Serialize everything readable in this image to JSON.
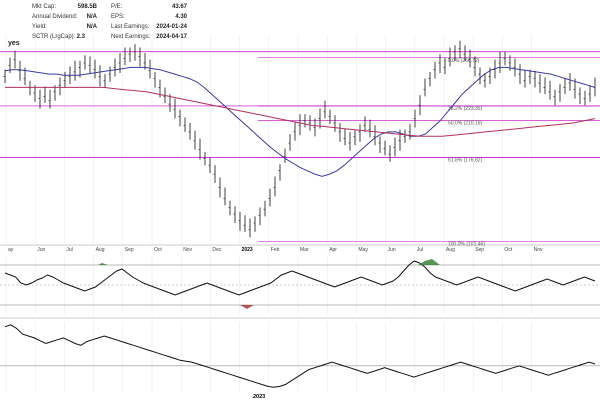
{
  "stats": {
    "left": [
      {
        "label": "Mkt Cap:",
        "value": "598.5B"
      },
      {
        "label": "Annual Dividend:",
        "value": "N/A"
      },
      {
        "label": "Yield:",
        "value": "N/A"
      },
      {
        "label": "SCTR (LrgCap):",
        "value": "2.3"
      }
    ],
    "right": [
      {
        "label": "P/E:",
        "value": "43.67"
      },
      {
        "label": "EPS:",
        "value": "4.30"
      },
      {
        "label": "Last Earnings:",
        "value": "2024-01-24"
      },
      {
        "label": "Next Earnings:",
        "value": "2024-04-17"
      }
    ],
    "flag": "yes"
  },
  "chart_data": {
    "type": "line",
    "panels": [
      "price",
      "oscillator",
      "relative-strength"
    ],
    "x_axis": {
      "months": [
        "ay",
        "Jun",
        "Jul",
        "Aug",
        "Sep",
        "Oct",
        "Nov",
        "Dec",
        "2023",
        "Feb",
        "Mar",
        "Apr",
        "May",
        "Jun",
        "Jul",
        "Aug",
        "Sep",
        "Oct",
        "Nov"
      ],
      "year_label": "2023"
    },
    "price": {
      "ohlc_close": [
        250,
        260,
        265,
        255,
        248,
        240,
        235,
        230,
        232,
        228,
        236,
        242,
        246,
        250,
        254,
        258,
        262,
        260,
        256,
        250,
        246,
        252,
        258,
        262,
        266,
        270,
        272,
        268,
        262,
        255,
        248,
        240,
        232,
        225,
        220,
        214,
        206,
        200,
        192,
        184,
        176,
        170,
        162,
        150,
        140,
        132,
        126,
        120,
        116,
        112,
        118,
        125,
        130,
        140,
        150,
        165,
        178,
        190,
        200,
        206,
        210,
        208,
        204,
        212,
        218,
        214,
        208,
        200,
        194,
        190,
        196,
        200,
        206,
        202,
        196,
        190,
        185,
        180,
        186,
        192,
        196,
        200,
        212,
        224,
        238,
        248,
        256,
        262,
        258,
        266,
        272,
        275,
        270,
        265,
        258,
        252,
        246,
        250,
        256,
        262,
        266,
        262,
        258,
        252,
        246,
        250,
        248,
        244,
        240,
        236,
        232,
        236,
        240,
        244,
        238,
        234,
        230,
        234,
        240
      ],
      "ma_short": [
        255,
        256,
        256,
        255,
        254,
        253,
        252,
        252,
        251,
        251,
        251,
        252,
        253,
        254,
        255,
        256,
        257,
        258,
        258,
        258,
        257,
        256,
        254,
        252,
        250,
        248,
        245,
        240,
        234,
        228,
        222,
        216,
        210,
        204,
        198,
        192,
        186,
        181,
        176,
        172,
        168,
        165,
        162,
        160,
        162,
        165,
        170,
        176,
        182,
        188,
        194,
        198,
        200,
        200,
        198,
        196,
        196,
        198,
        204,
        210,
        218,
        226,
        234,
        240,
        246,
        252,
        256,
        258,
        258,
        257,
        256,
        255,
        254,
        253,
        252,
        250,
        248,
        246,
        244,
        242,
        240
      ],
      "ma_long": [
        240,
        240,
        240,
        240,
        240,
        240,
        240,
        240,
        240,
        240,
        239,
        238,
        237,
        236,
        234,
        232,
        230,
        228,
        226,
        224,
        222,
        220,
        218,
        216,
        214,
        212,
        210,
        208,
        206,
        205,
        204,
        203,
        202,
        201,
        200,
        199,
        198,
        197,
        196,
        196,
        196,
        197,
        198,
        199,
        200,
        201,
        202,
        203,
        204,
        205,
        206,
        207,
        208,
        210,
        212
      ],
      "fibonacci": [
        {
          "level": "0.0%",
          "price": "266.72"
        },
        {
          "level": "38.2%",
          "price": "223.35"
        },
        {
          "level": "50.0%",
          "price": "210.19"
        },
        {
          "level": "61.8%",
          "price": "176.82"
        },
        {
          "level": "100.0%",
          "price": "101.46"
        }
      ]
    },
    "oscillator": {
      "values": [
        62,
        60,
        58,
        52,
        50,
        52,
        55,
        57,
        60,
        58,
        55,
        52,
        50,
        48,
        46,
        44,
        46,
        48,
        52,
        56,
        60,
        64,
        66,
        62,
        58,
        55,
        52,
        50,
        48,
        46,
        44,
        42,
        40,
        42,
        44,
        46,
        48,
        50,
        52,
        50,
        48,
        46,
        44,
        42,
        40,
        42,
        44,
        46,
        48,
        50,
        52,
        56,
        60,
        62,
        64,
        62,
        60,
        58,
        56,
        54,
        52,
        50,
        48,
        50,
        52,
        54,
        56,
        58,
        56,
        54,
        52,
        50,
        52,
        54,
        58,
        64,
        70,
        74,
        72,
        68,
        62,
        58,
        56,
        54,
        52,
        50,
        52,
        54,
        56,
        58,
        56,
        54,
        52,
        50,
        48,
        46,
        44,
        46,
        48,
        50,
        52,
        54,
        56,
        54,
        52,
        50,
        52,
        54,
        56,
        58,
        56,
        54
      ],
      "upper_level": 70,
      "mid_level": 50,
      "lower_level": 30
    },
    "relative_strength": {
      "values": [
        70,
        72,
        68,
        62,
        60,
        58,
        55,
        52,
        54,
        56,
        58,
        55,
        52,
        50,
        54,
        56,
        58,
        60,
        58,
        56,
        54,
        52,
        50,
        48,
        46,
        44,
        42,
        40,
        38,
        36,
        34,
        33,
        32,
        30,
        28,
        26,
        24,
        22,
        20,
        18,
        16,
        14,
        12,
        10,
        8,
        6,
        5,
        6,
        8,
        12,
        16,
        20,
        24,
        26,
        28,
        30,
        32,
        30,
        28,
        26,
        24,
        22,
        20,
        22,
        24,
        26,
        24,
        22,
        20,
        18,
        16,
        18,
        20,
        22,
        24,
        26,
        28,
        30,
        32,
        30,
        28,
        26,
        24,
        22,
        20,
        22,
        24,
        26,
        28,
        26,
        24,
        22,
        20,
        18,
        20,
        22,
        24,
        26,
        28,
        30,
        32,
        30
      ],
      "reference_level": 28
    }
  }
}
